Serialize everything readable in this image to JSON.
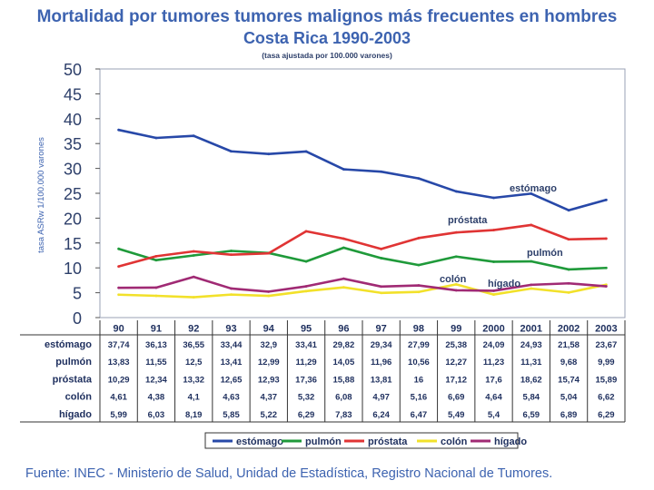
{
  "chart_data": {
    "type": "line",
    "title": "Mortalidad por tumores tumores malignos más frecuentes en hombres",
    "subtitle": "Costa Rica 1990-2003",
    "subsubtitle": "(tasa ajustada por 100.000 varones)",
    "ylabel": "tasa ASRw 1/100.000 varones",
    "xlabel": "",
    "ylim": [
      0,
      50
    ],
    "yticks": [
      "0",
      "5",
      "10",
      "15",
      "20",
      "25",
      "30",
      "35",
      "40",
      "45",
      "50"
    ],
    "categories": [
      "90",
      "91",
      "92",
      "93",
      "94",
      "95",
      "96",
      "97",
      "98",
      "99",
      "2000",
      "2001",
      "2002",
      "2003"
    ],
    "series": [
      {
        "name": "estómago",
        "label": "estómago",
        "color": "#2748a8",
        "display": [
          "37,74",
          "36,13",
          "36,55",
          "33,44",
          "32,9",
          "33,41",
          "29,82",
          "29,34",
          "27,99",
          "25,38",
          "24,09",
          "24,93",
          "21,58",
          "23,67"
        ],
        "values": [
          37.74,
          36.13,
          36.55,
          33.44,
          32.9,
          33.41,
          29.82,
          29.34,
          27.99,
          25.38,
          24.09,
          24.93,
          21.58,
          23.67
        ]
      },
      {
        "name": "pulmón",
        "label": "pulmón",
        "color": "#1f9a3a",
        "display": [
          "13,83",
          "11,55",
          "12,5",
          "13,41",
          "12,99",
          "11,29",
          "14,05",
          "11,96",
          "10,56",
          "12,27",
          "11,23",
          "11,31",
          "9,68",
          "9,99"
        ],
        "values": [
          13.83,
          11.55,
          12.5,
          13.41,
          12.99,
          11.29,
          14.05,
          11.96,
          10.56,
          12.27,
          11.23,
          11.31,
          9.68,
          9.99
        ]
      },
      {
        "name": "próstata",
        "label": "próstata",
        "color": "#e03434",
        "display": [
          "10,29",
          "12,34",
          "13,32",
          "12,65",
          "12,93",
          "17,36",
          "15,88",
          "13,81",
          "16",
          "17,12",
          "17,6",
          "18,62",
          "15,74",
          "15,89"
        ],
        "values": [
          10.29,
          12.34,
          13.32,
          12.65,
          12.93,
          17.36,
          15.88,
          13.81,
          16,
          17.12,
          17.6,
          18.62,
          15.74,
          15.89
        ]
      },
      {
        "name": "colón",
        "label": "colón",
        "color": "#f2e12a",
        "display": [
          "4,61",
          "4,38",
          "4,1",
          "4,63",
          "4,37",
          "5,32",
          "6,08",
          "4,97",
          "5,16",
          "6,69",
          "4,64",
          "5,84",
          "5,04",
          "6,62"
        ],
        "values": [
          4.61,
          4.38,
          4.1,
          4.63,
          4.37,
          5.32,
          6.08,
          4.97,
          5.16,
          6.69,
          4.64,
          5.84,
          5.04,
          6.62
        ]
      },
      {
        "name": "hígado",
        "label": "hígado",
        "color": "#a02a74",
        "display": [
          "5,99",
          "6,03",
          "8,19",
          "5,85",
          "5,22",
          "6,29",
          "7,83",
          "6,24",
          "6,47",
          "5,49",
          "5,4",
          "6,59",
          "6,89",
          "6,29"
        ],
        "values": [
          5.99,
          6.03,
          8.19,
          5.85,
          5.22,
          6.29,
          7.83,
          6.24,
          6.47,
          5.49,
          5.4,
          6.59,
          6.89,
          6.29
        ]
      }
    ],
    "annotations": [
      "estómago",
      "próstata",
      "pulmón",
      "colón",
      "hígado"
    ],
    "legend_position": "bottom"
  },
  "source": "Fuente: INEC - Ministerio de Salud, Unidad de Estadística, Registro Nacional de Tumores."
}
